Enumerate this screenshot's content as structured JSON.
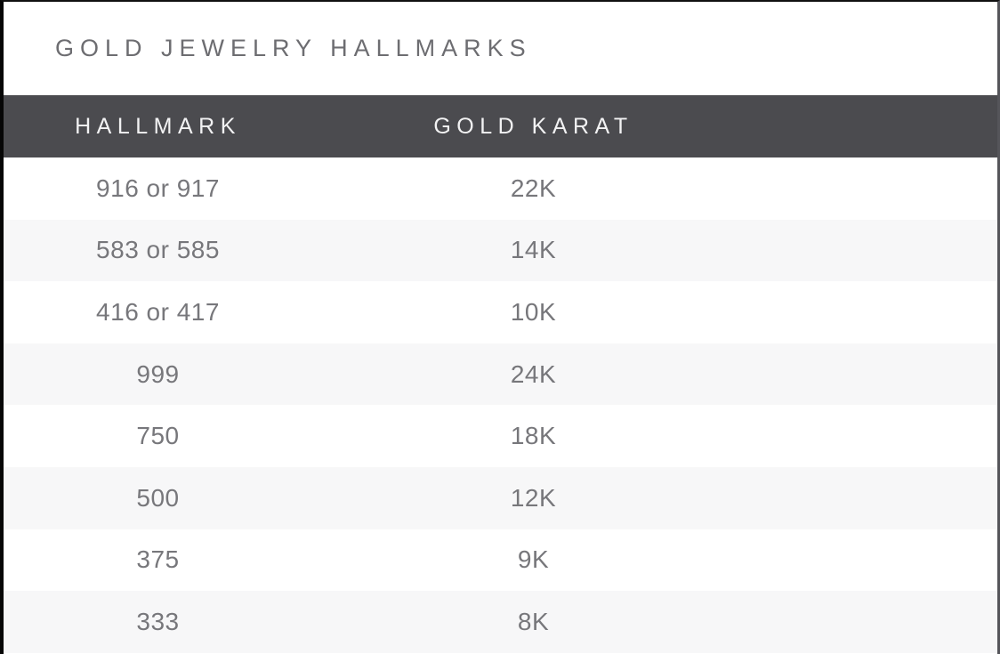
{
  "title": "GOLD JEWELRY HALLMARKS",
  "table": {
    "columns": [
      "HALLMARK",
      "GOLD KARAT"
    ],
    "rows": [
      {
        "hallmark": "916 or 917",
        "karat": "22K"
      },
      {
        "hallmark": "583 or 585",
        "karat": "14K"
      },
      {
        "hallmark": "416 or 417",
        "karat": "10K"
      },
      {
        "hallmark": "999",
        "karat": "24K"
      },
      {
        "hallmark": "750",
        "karat": "18K"
      },
      {
        "hallmark": "500",
        "karat": "12K"
      },
      {
        "hallmark": "375",
        "karat": "9K"
      },
      {
        "hallmark": "333",
        "karat": "8K"
      }
    ]
  },
  "colors": {
    "header_bg": "#4b4b4f",
    "header_text": "#f2f2f3",
    "row_bg": "#ffffff",
    "row_alt_bg": "#f7f7f8",
    "title_text": "#6d6d71",
    "cell_text": "#77777b",
    "frame_border": "#0a0a0a"
  },
  "chart_data": {
    "type": "table",
    "title": "GOLD JEWELRY HALLMARKS",
    "columns": [
      "HALLMARK",
      "GOLD KARAT"
    ],
    "rows": [
      [
        "916 or 917",
        "22K"
      ],
      [
        "583 or 585",
        "14K"
      ],
      [
        "416 or 417",
        "10K"
      ],
      [
        "999",
        "24K"
      ],
      [
        "750",
        "18K"
      ],
      [
        "500",
        "12K"
      ],
      [
        "375",
        "9K"
      ],
      [
        "333",
        "8K"
      ]
    ],
    "layout": {
      "header_style": "dark-band",
      "row_striping": true,
      "alignment": "center"
    }
  }
}
